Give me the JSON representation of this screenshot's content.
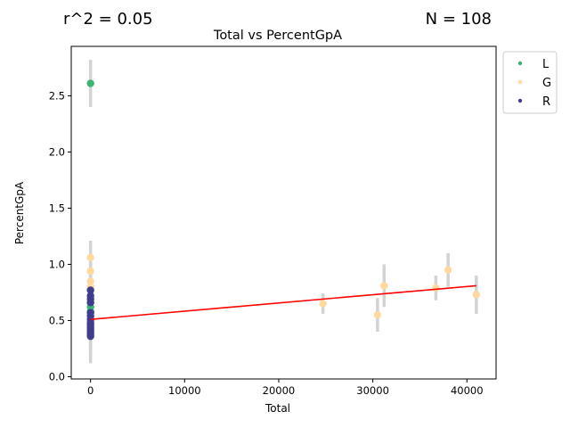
{
  "chart_data": {
    "type": "scatter",
    "title": "Total vs PercentGpA",
    "xlabel": "Total",
    "ylabel": "PercentGpA",
    "r2_text": "r^2 = 0.05",
    "n_text": "N = 108",
    "xlim": [
      -2050,
      43100
    ],
    "ylim": [
      -0.02,
      2.94
    ],
    "xticks": [
      0,
      10000,
      20000,
      30000,
      40000
    ],
    "xtick_labels": [
      "0",
      "10000",
      "20000",
      "30000",
      "40000"
    ],
    "yticks": [
      0.0,
      0.5,
      1.0,
      1.5,
      2.0,
      2.5
    ],
    "ytick_labels": [
      "0.0",
      "0.5",
      "1.0",
      "1.5",
      "2.0",
      "2.5"
    ],
    "grid": false,
    "legend_position": "outside-top-right",
    "colors": {
      "L": "#3cb371",
      "G": "#ffd9a0",
      "R": "#3f3d8c",
      "fit": "#ff0000",
      "errorbar": "#d3d3d3"
    },
    "series": [
      {
        "name": "L",
        "color": "#3cb371",
        "points": [
          {
            "x": 0,
            "y": 2.61,
            "err": 0.21
          },
          {
            "x": 0,
            "y": 0.66,
            "err": 0.1
          },
          {
            "x": 0,
            "y": 0.62,
            "err": 0.1
          },
          {
            "x": 0,
            "y": 0.58,
            "err": 0.1
          }
        ]
      },
      {
        "name": "G",
        "color": "#ffd9a0",
        "points": [
          {
            "x": 0,
            "y": 1.06,
            "err": 0.15
          },
          {
            "x": 0,
            "y": 0.94,
            "err": 0.14
          },
          {
            "x": 0,
            "y": 0.85,
            "err": 0.12
          },
          {
            "x": 0,
            "y": 0.8,
            "err": 0.12
          },
          {
            "x": 24700,
            "y": 0.65,
            "err": 0.09
          },
          {
            "x": 30500,
            "y": 0.55,
            "err": 0.15
          },
          {
            "x": 31200,
            "y": 0.81,
            "err": 0.19
          },
          {
            "x": 36700,
            "y": 0.79,
            "err": 0.11
          },
          {
            "x": 38000,
            "y": 0.95,
            "err": 0.15
          },
          {
            "x": 41000,
            "y": 0.73,
            "err": 0.17
          }
        ]
      },
      {
        "name": "R",
        "color": "#3f3d8c",
        "points": [
          {
            "x": 0,
            "y": 0.77,
            "err": 0.1
          },
          {
            "x": 0,
            "y": 0.72,
            "err": 0.1
          },
          {
            "x": 0,
            "y": 0.69,
            "err": 0.1
          },
          {
            "x": 0,
            "y": 0.66,
            "err": 0.1
          },
          {
            "x": 0,
            "y": 0.57,
            "err": 0.1
          },
          {
            "x": 0,
            "y": 0.54,
            "err": 0.1
          },
          {
            "x": 0,
            "y": 0.51,
            "err": 0.1
          },
          {
            "x": 0,
            "y": 0.48,
            "err": 0.1
          },
          {
            "x": 0,
            "y": 0.46,
            "err": 0.1
          },
          {
            "x": 0,
            "y": 0.44,
            "err": 0.1
          },
          {
            "x": 0,
            "y": 0.42,
            "err": 0.1
          },
          {
            "x": 0,
            "y": 0.4,
            "err": 0.15
          },
          {
            "x": 0,
            "y": 0.38,
            "err": 0.2
          },
          {
            "x": 0,
            "y": 0.36,
            "err": 0.24
          }
        ]
      }
    ],
    "fit_line": {
      "x": [
        0,
        41000
      ],
      "y": [
        0.51,
        0.81
      ]
    }
  }
}
